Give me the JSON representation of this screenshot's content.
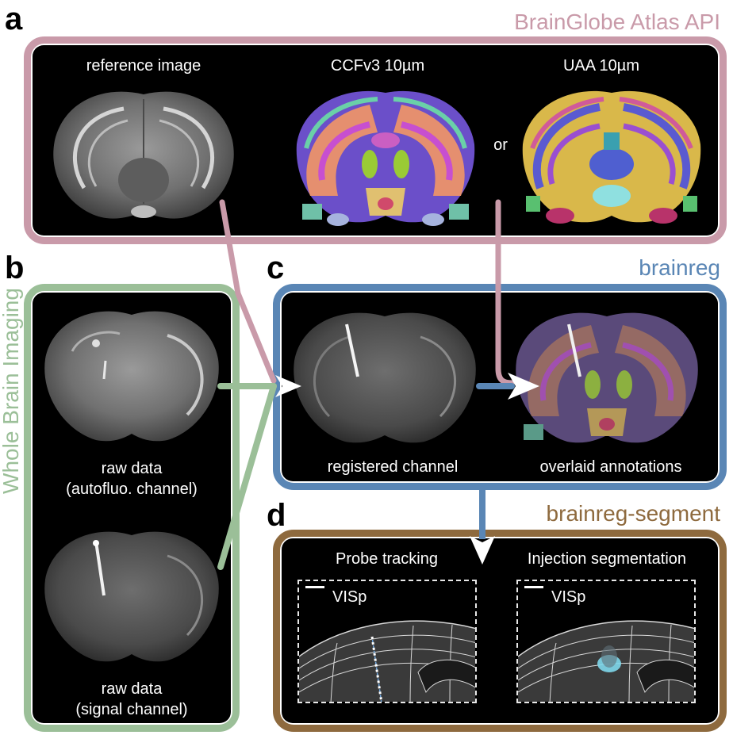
{
  "panels": {
    "a": {
      "letter": "a",
      "title": "BrainGlobe Atlas API"
    },
    "b": {
      "letter": "b",
      "title": "Whole Brain Imaging"
    },
    "c": {
      "letter": "c",
      "title": "brainreg"
    },
    "d": {
      "letter": "d",
      "title": "brainreg-segment"
    }
  },
  "atlas": {
    "reference_label": "reference image",
    "ccf_label": "CCFv3 10µm",
    "or_label": "or",
    "uaa_label": "UAA 10µm"
  },
  "imaging": {
    "raw1_line1": "raw data",
    "raw1_line2": "(autofluo. channel)",
    "raw2_line1": "raw data",
    "raw2_line2": "(signal channel)"
  },
  "registration": {
    "registered_label": "registered channel",
    "overlaid_label": "overlaid annotations"
  },
  "segment": {
    "probe_label": "Probe tracking",
    "injection_label": "Injection segmentation",
    "region1": "VISp",
    "region2": "VISp"
  },
  "colors": {
    "atlas_frame": "#c99aa9",
    "imaging_frame": "#9bbf98",
    "brainreg_frame": "#5a86b5",
    "segment_frame": "#8e6a3e",
    "injection_blob": "#7fd8ec"
  },
  "icons": [
    "white-arrow-head-icon"
  ]
}
